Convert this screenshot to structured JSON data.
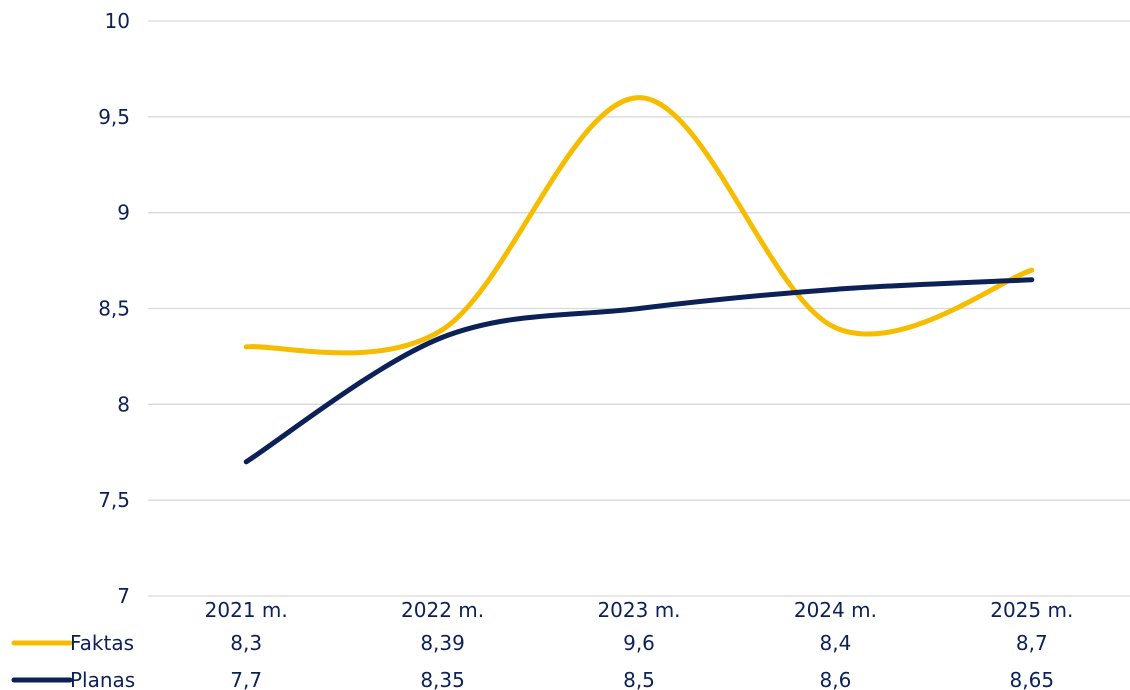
{
  "chart_data": {
    "type": "line",
    "title": "",
    "xlabel": "",
    "ylabel": "",
    "categories": [
      "2021 m.",
      "2022 m.",
      "2023 m.",
      "2024 m.",
      "2025 m."
    ],
    "ylim": [
      7,
      10
    ],
    "yticks": [
      7,
      7.5,
      8,
      8.5,
      9,
      9.5,
      10
    ],
    "ytick_labels": [
      "7",
      "7,5",
      "8",
      "8,5",
      "9",
      "9,5",
      "10"
    ],
    "grid": true,
    "smooth": true,
    "legend": "data-table-below",
    "series": [
      {
        "name": "Faktas",
        "color": "#f5bc00",
        "values": [
          8.3,
          8.39,
          9.6,
          8.4,
          8.7
        ],
        "value_labels": [
          "8,3",
          "8,39",
          "9,6",
          "8,4",
          "8,7"
        ]
      },
      {
        "name": "Planas",
        "color": "#0b2158",
        "values": [
          7.7,
          8.35,
          8.5,
          8.6,
          8.65
        ],
        "value_labels": [
          "7,7",
          "8,35",
          "8,5",
          "8,6",
          "8,65"
        ]
      }
    ]
  }
}
